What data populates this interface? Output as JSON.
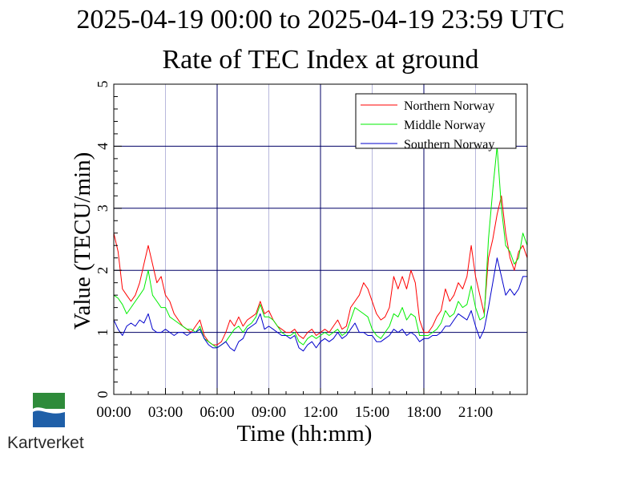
{
  "header": {
    "date_range": "2025-04-19 00:00 to 2025-04-19 23:59 UTC",
    "title": "Rate of TEC Index at ground"
  },
  "logo": {
    "name": "Kartverket",
    "icon": "kartverket-logo-icon",
    "colors": [
      "#2e8b3a",
      "#1f5fa8"
    ]
  },
  "chart_data": {
    "type": "line",
    "title": "Rate of TEC Index at ground",
    "xlabel": "Time (hh:mm)",
    "ylabel": "Value (TECU/min)",
    "xlim": [
      0,
      24
    ],
    "ylim": [
      0,
      5
    ],
    "x_ticks": [
      "00:00",
      "03:00",
      "06:00",
      "09:00",
      "12:00",
      "15:00",
      "18:00",
      "21:00"
    ],
    "y_ticks": [
      "0",
      "1",
      "2",
      "3",
      "4",
      "5"
    ],
    "grid": true,
    "legend_position": "top-right",
    "series": [
      {
        "name": "Northern Norway",
        "color": "#ff0000",
        "x": [
          0,
          0.25,
          0.5,
          0.75,
          1,
          1.25,
          1.5,
          1.75,
          2,
          2.25,
          2.5,
          2.75,
          3,
          3.25,
          3.5,
          3.75,
          4,
          4.25,
          4.5,
          4.75,
          5,
          5.25,
          5.5,
          5.75,
          6,
          6.25,
          6.5,
          6.75,
          7,
          7.25,
          7.5,
          7.75,
          8,
          8.25,
          8.5,
          8.75,
          9,
          9.25,
          9.5,
          9.75,
          10,
          10.25,
          10.5,
          10.75,
          11,
          11.25,
          11.5,
          11.75,
          12,
          12.25,
          12.5,
          12.75,
          13,
          13.25,
          13.5,
          13.75,
          14,
          14.25,
          14.5,
          14.75,
          15,
          15.25,
          15.5,
          15.75,
          16,
          16.25,
          16.5,
          16.75,
          17,
          17.25,
          17.5,
          17.75,
          18,
          18.25,
          18.5,
          18.75,
          19,
          19.25,
          19.5,
          19.75,
          20,
          20.25,
          20.5,
          20.75,
          21,
          21.25,
          21.5,
          21.75,
          22,
          22.25,
          22.5,
          22.75,
          23,
          23.25,
          23.5,
          23.75,
          24
        ],
        "values": [
          2.6,
          2.3,
          1.7,
          1.6,
          1.5,
          1.6,
          1.8,
          2.1,
          2.4,
          2.1,
          1.8,
          1.9,
          1.6,
          1.5,
          1.3,
          1.2,
          1.1,
          1.05,
          1.0,
          1.1,
          1.2,
          0.95,
          0.85,
          0.8,
          0.8,
          0.85,
          1.0,
          1.2,
          1.1,
          1.25,
          1.1,
          1.2,
          1.25,
          1.3,
          1.5,
          1.3,
          1.35,
          1.2,
          1.1,
          1.05,
          1.0,
          1.0,
          1.05,
          0.95,
          0.9,
          1.0,
          1.05,
          0.95,
          1.0,
          1.05,
          1.0,
          1.1,
          1.2,
          1.05,
          1.1,
          1.4,
          1.5,
          1.6,
          1.8,
          1.7,
          1.5,
          1.3,
          1.2,
          1.25,
          1.4,
          1.9,
          1.7,
          1.9,
          1.7,
          2.0,
          1.8,
          1.2,
          1.0,
          1.0,
          1.1,
          1.25,
          1.35,
          1.7,
          1.5,
          1.6,
          1.8,
          1.7,
          1.9,
          2.4,
          1.9,
          1.6,
          1.3,
          2.2,
          2.5,
          2.9,
          3.2,
          2.6,
          2.2,
          2.0,
          2.3,
          2.4,
          2.2
        ]
      },
      {
        "name": "Middle Norway",
        "color": "#00ee00",
        "x": [
          0,
          0.25,
          0.5,
          0.75,
          1,
          1.25,
          1.5,
          1.75,
          2,
          2.25,
          2.5,
          2.75,
          3,
          3.25,
          3.5,
          3.75,
          4,
          4.25,
          4.5,
          4.75,
          5,
          5.25,
          5.5,
          5.75,
          6,
          6.25,
          6.5,
          6.75,
          7,
          7.25,
          7.5,
          7.75,
          8,
          8.25,
          8.5,
          8.75,
          9,
          9.25,
          9.5,
          9.75,
          10,
          10.25,
          10.5,
          10.75,
          11,
          11.25,
          11.5,
          11.75,
          12,
          12.25,
          12.5,
          12.75,
          13,
          13.25,
          13.5,
          13.75,
          14,
          14.25,
          14.5,
          14.75,
          15,
          15.25,
          15.5,
          15.75,
          16,
          16.25,
          16.5,
          16.75,
          17,
          17.25,
          17.5,
          17.75,
          18,
          18.25,
          18.5,
          18.75,
          19,
          19.25,
          19.5,
          19.75,
          20,
          20.25,
          20.5,
          20.75,
          21,
          21.25,
          21.5,
          21.75,
          22,
          22.25,
          22.5,
          22.75,
          23,
          23.25,
          23.5,
          23.75,
          24
        ],
        "values": [
          1.6,
          1.55,
          1.45,
          1.3,
          1.4,
          1.5,
          1.6,
          1.7,
          2.0,
          1.6,
          1.5,
          1.4,
          1.4,
          1.25,
          1.2,
          1.15,
          1.1,
          1.05,
          1.05,
          1.0,
          1.1,
          0.9,
          0.85,
          0.8,
          0.75,
          0.8,
          0.85,
          0.95,
          1.05,
          1.1,
          1.0,
          1.1,
          1.15,
          1.25,
          1.45,
          1.25,
          1.25,
          1.2,
          1.1,
          1.0,
          0.95,
          0.95,
          1.0,
          0.85,
          0.8,
          0.9,
          0.95,
          0.9,
          0.95,
          1.0,
          0.95,
          1.0,
          1.05,
          0.95,
          1.0,
          1.2,
          1.4,
          1.35,
          1.3,
          1.25,
          1.05,
          0.95,
          0.9,
          1.0,
          1.1,
          1.3,
          1.25,
          1.4,
          1.2,
          1.3,
          1.25,
          0.95,
          0.95,
          0.95,
          1.0,
          1.05,
          1.15,
          1.35,
          1.25,
          1.3,
          1.5,
          1.4,
          1.45,
          1.75,
          1.4,
          1.2,
          1.25,
          2.5,
          3.3,
          4.0,
          3.0,
          2.4,
          2.3,
          2.1,
          2.2,
          2.6,
          2.4
        ]
      },
      {
        "name": "Southern Norway",
        "color": "#0000cc",
        "x": [
          0,
          0.25,
          0.5,
          0.75,
          1,
          1.25,
          1.5,
          1.75,
          2,
          2.25,
          2.5,
          2.75,
          3,
          3.25,
          3.5,
          3.75,
          4,
          4.25,
          4.5,
          4.75,
          5,
          5.25,
          5.5,
          5.75,
          6,
          6.25,
          6.5,
          6.75,
          7,
          7.25,
          7.5,
          7.75,
          8,
          8.25,
          8.5,
          8.75,
          9,
          9.25,
          9.5,
          9.75,
          10,
          10.25,
          10.5,
          10.75,
          11,
          11.25,
          11.5,
          11.75,
          12,
          12.25,
          12.5,
          12.75,
          13,
          13.25,
          13.5,
          13.75,
          14,
          14.25,
          14.5,
          14.75,
          15,
          15.25,
          15.5,
          15.75,
          16,
          16.25,
          16.5,
          16.75,
          17,
          17.25,
          17.5,
          17.75,
          18,
          18.25,
          18.5,
          18.75,
          19,
          19.25,
          19.5,
          19.75,
          20,
          20.25,
          20.5,
          20.75,
          21,
          21.25,
          21.5,
          21.75,
          22,
          22.25,
          22.5,
          22.75,
          23,
          23.25,
          23.5,
          23.75,
          24
        ],
        "values": [
          1.2,
          1.05,
          0.95,
          1.1,
          1.15,
          1.1,
          1.2,
          1.15,
          1.3,
          1.05,
          1.0,
          1.0,
          1.05,
          1.0,
          0.95,
          1.0,
          1.0,
          0.95,
          1.0,
          1.0,
          1.05,
          0.9,
          0.8,
          0.75,
          0.75,
          0.8,
          0.85,
          0.75,
          0.7,
          0.85,
          0.9,
          1.05,
          1.1,
          1.15,
          1.3,
          1.05,
          1.1,
          1.05,
          1.0,
          0.95,
          0.95,
          0.9,
          0.95,
          0.75,
          0.7,
          0.8,
          0.85,
          0.75,
          0.85,
          0.9,
          0.85,
          0.9,
          1.0,
          0.9,
          0.95,
          1.05,
          1.15,
          1.0,
          1.0,
          0.95,
          0.95,
          0.85,
          0.85,
          0.9,
          0.95,
          1.05,
          1.0,
          1.05,
          0.95,
          1.0,
          0.95,
          0.85,
          0.9,
          0.9,
          0.95,
          0.95,
          1.0,
          1.1,
          1.1,
          1.2,
          1.3,
          1.25,
          1.2,
          1.35,
          1.1,
          0.9,
          1.05,
          1.4,
          1.8,
          2.2,
          1.9,
          1.6,
          1.7,
          1.6,
          1.7,
          1.9,
          1.9
        ]
      }
    ]
  }
}
